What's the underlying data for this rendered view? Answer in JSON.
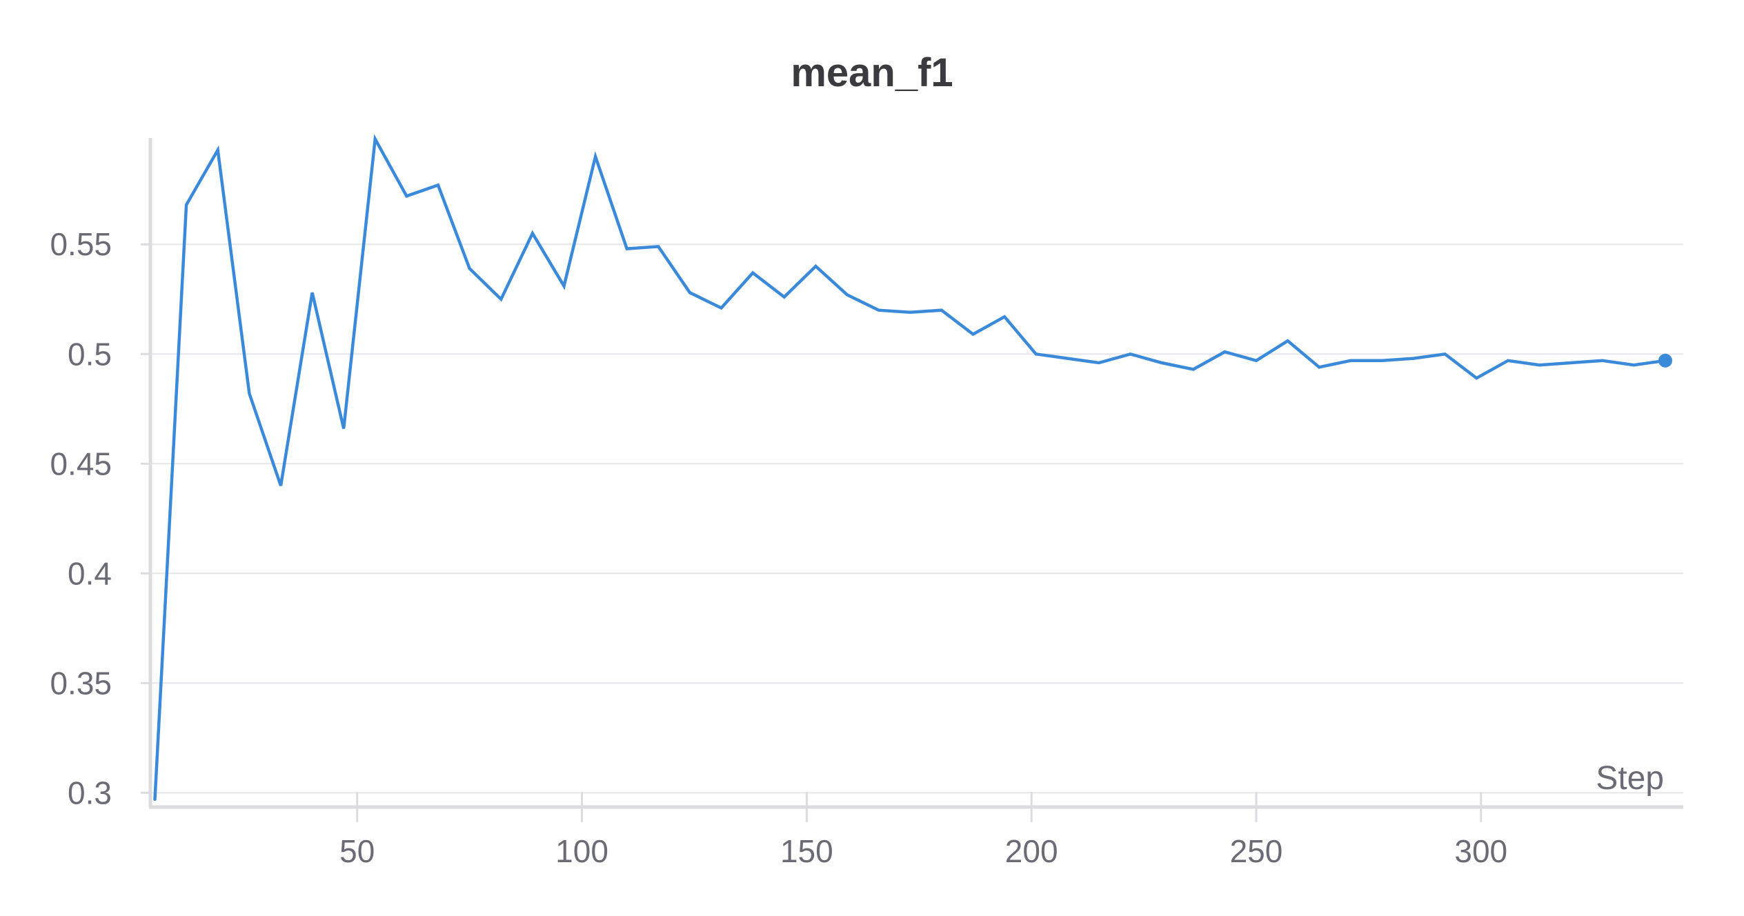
{
  "chart_data": {
    "type": "line",
    "title": "mean_f1",
    "xlabel": "Step",
    "ylabel": "",
    "xlim": [
      4,
      345
    ],
    "ylim": [
      0.2935,
      0.5985
    ],
    "xticks": [
      50,
      100,
      150,
      200,
      250,
      300
    ],
    "xtick_labels": [
      "50",
      "100",
      "150",
      "200",
      "250",
      "300"
    ],
    "yticks": [
      0.3,
      0.35,
      0.4,
      0.45,
      0.5,
      0.55
    ],
    "ytick_labels": [
      "0.3",
      "0.35",
      "0.4",
      "0.45",
      "0.5",
      "0.55"
    ],
    "grid": true,
    "series_color": "#3b8ad9",
    "series": [
      {
        "name": "mean_f1",
        "x": [
          5,
          12,
          19,
          26,
          33,
          40,
          47,
          54,
          61,
          68,
          75,
          82,
          89,
          96,
          103,
          110,
          117,
          124,
          131,
          138,
          145,
          152,
          159,
          166,
          173,
          180,
          187,
          194,
          201,
          208,
          215,
          222,
          229,
          236,
          243,
          250,
          257,
          264,
          271,
          278,
          285,
          292,
          299,
          306,
          313,
          320,
          327,
          334,
          341
        ],
        "values": [
          0.297,
          0.568,
          0.593,
          0.482,
          0.44,
          0.528,
          0.466,
          0.598,
          0.572,
          0.577,
          0.539,
          0.525,
          0.555,
          0.531,
          0.59,
          0.548,
          0.549,
          0.528,
          0.521,
          0.537,
          0.526,
          0.54,
          0.527,
          0.52,
          0.519,
          0.52,
          0.509,
          0.517,
          0.5,
          0.498,
          0.496,
          0.5,
          0.496,
          0.493,
          0.501,
          0.497,
          0.506,
          0.494,
          0.497,
          0.497,
          0.498,
          0.5,
          0.489,
          0.497,
          0.495,
          0.496,
          0.497,
          0.495,
          0.497
        ]
      }
    ]
  }
}
